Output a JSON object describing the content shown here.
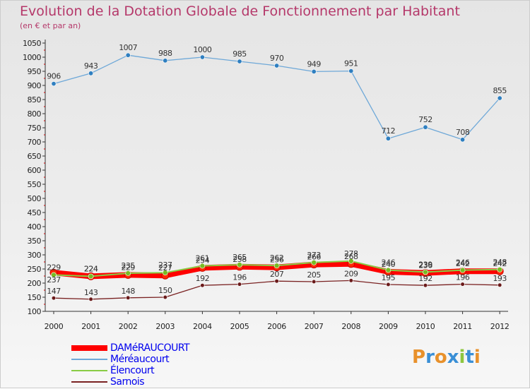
{
  "title": "Evolution de la Dotation Globale de Fonctionnement par Habitant",
  "subtitle": "(en € et par an)",
  "logo": {
    "text": "Proxiti",
    "colors": [
      "#e8912b",
      "#3a8fd6",
      "#e8912b",
      "#3a8fd6",
      "#8dc63f",
      "#3a8fd6",
      "#e8912b"
    ]
  },
  "chart_data": {
    "type": "line",
    "x": [
      "2000",
      "2001",
      "2002",
      "2003",
      "2004",
      "2005",
      "2006",
      "2007",
      "2008",
      "2009",
      "2010",
      "2011",
      "2012"
    ],
    "ylim": [
      100,
      1050
    ],
    "yticks": [
      "100",
      "150",
      "200",
      "250",
      "300",
      "350",
      "400",
      "450",
      "500",
      "550",
      "600",
      "650",
      "700",
      "750",
      "800",
      "850",
      "900",
      "950",
      "1000",
      "1050"
    ],
    "grid": false,
    "legend_position": "bottom-left",
    "series": [
      {
        "name": "DAMéRAUCOURT",
        "color": "#ff0000",
        "values": [
          237,
          224,
          229,
          227,
          254,
          258,
          256,
          266,
          268,
          240,
          236,
          242,
          242
        ]
      },
      {
        "name": "Méréaucourt",
        "color": "#6ea8d8",
        "values": [
          906,
          943,
          1007,
          988,
          1000,
          985,
          970,
          949,
          951,
          712,
          752,
          708,
          855
        ]
      },
      {
        "name": "Élencourt",
        "color": "#88cc44",
        "values": [
          229,
          224,
          235,
          237,
          261,
          265,
          262,
          273,
          278,
          246,
          239,
          246,
          248
        ]
      },
      {
        "name": "Sarnois",
        "color": "#7a2222",
        "values": [
          147,
          143,
          148,
          150,
          192,
          196,
          207,
          205,
          209,
          195,
          192,
          196,
          193
        ]
      }
    ],
    "data_labels": [
      [
        "237",
        "224",
        "229",
        "227",
        "254",
        "258",
        "256",
        "266",
        "268",
        "240",
        "236",
        "242",
        "242"
      ],
      [
        "906",
        "943",
        "1007",
        "988",
        "1000",
        "985",
        "970",
        "949",
        "951",
        "712",
        "752",
        "708",
        "855"
      ],
      [
        "229",
        "224",
        "235",
        "237",
        "261",
        "265",
        "262",
        "273",
        "278",
        "246",
        "239",
        "246",
        "248"
      ],
      [
        "147",
        "143",
        "148",
        "150",
        "192",
        "196",
        "207",
        "205",
        "209",
        "195",
        "192",
        "196",
        "193"
      ]
    ]
  }
}
